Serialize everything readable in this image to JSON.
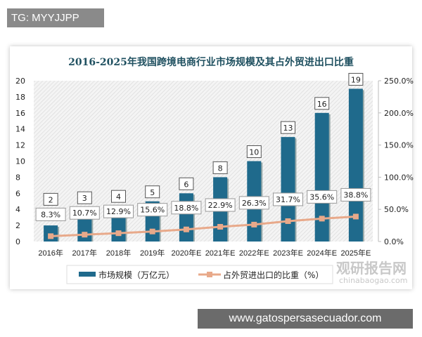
{
  "header_tag": "TG: MYYJJPP",
  "footer_watermark": "www.gatospersasecuador.com",
  "logo_text": "观研报告网",
  "logo_url_text": "chinabaogao.com",
  "colors": {
    "bar": "#1f6a8c",
    "line": "#e8a98a",
    "title": "#1f5060"
  },
  "chart_data": {
    "type": "bar+line",
    "title": "2016-2025年我国跨境电商行业市场规模及其占外贸进出口比重",
    "categories": [
      "2016年",
      "2017年",
      "2018年",
      "2019年",
      "2020年E",
      "2021年E",
      "2022年E",
      "2023年E",
      "2024年E",
      "2025年E"
    ],
    "series": [
      {
        "name": "市场规模（万亿元）",
        "type": "bar",
        "axis": "left",
        "values": [
          2,
          3,
          4,
          5,
          6,
          8,
          10,
          13,
          16,
          19
        ],
        "labels": [
          "2",
          "3",
          "4",
          "5",
          "6",
          "8",
          "10",
          "13",
          "16",
          "19"
        ]
      },
      {
        "name": "占外贸进出口的比重（%）",
        "type": "line",
        "axis": "right",
        "values": [
          8.3,
          10.7,
          12.9,
          15.6,
          18.8,
          22.9,
          26.3,
          31.7,
          35.6,
          38.8
        ],
        "labels": [
          "8.3%",
          "10.7%",
          "12.9%",
          "15.6%",
          "18.8%",
          "22.9%",
          "26.3%",
          "31.7%",
          "35.6%",
          "38.8%"
        ]
      }
    ],
    "ylim": [
      0,
      20
    ],
    "yticks": [
      "0",
      "2",
      "4",
      "6",
      "8",
      "10",
      "12",
      "14",
      "16",
      "18",
      "20"
    ],
    "y2lim": [
      0,
      250
    ],
    "y2ticks": [
      "0.0%",
      "50.0%",
      "100.0%",
      "150.0%",
      "200.0%",
      "250.0%"
    ],
    "grid": false,
    "legend": "bottom"
  }
}
